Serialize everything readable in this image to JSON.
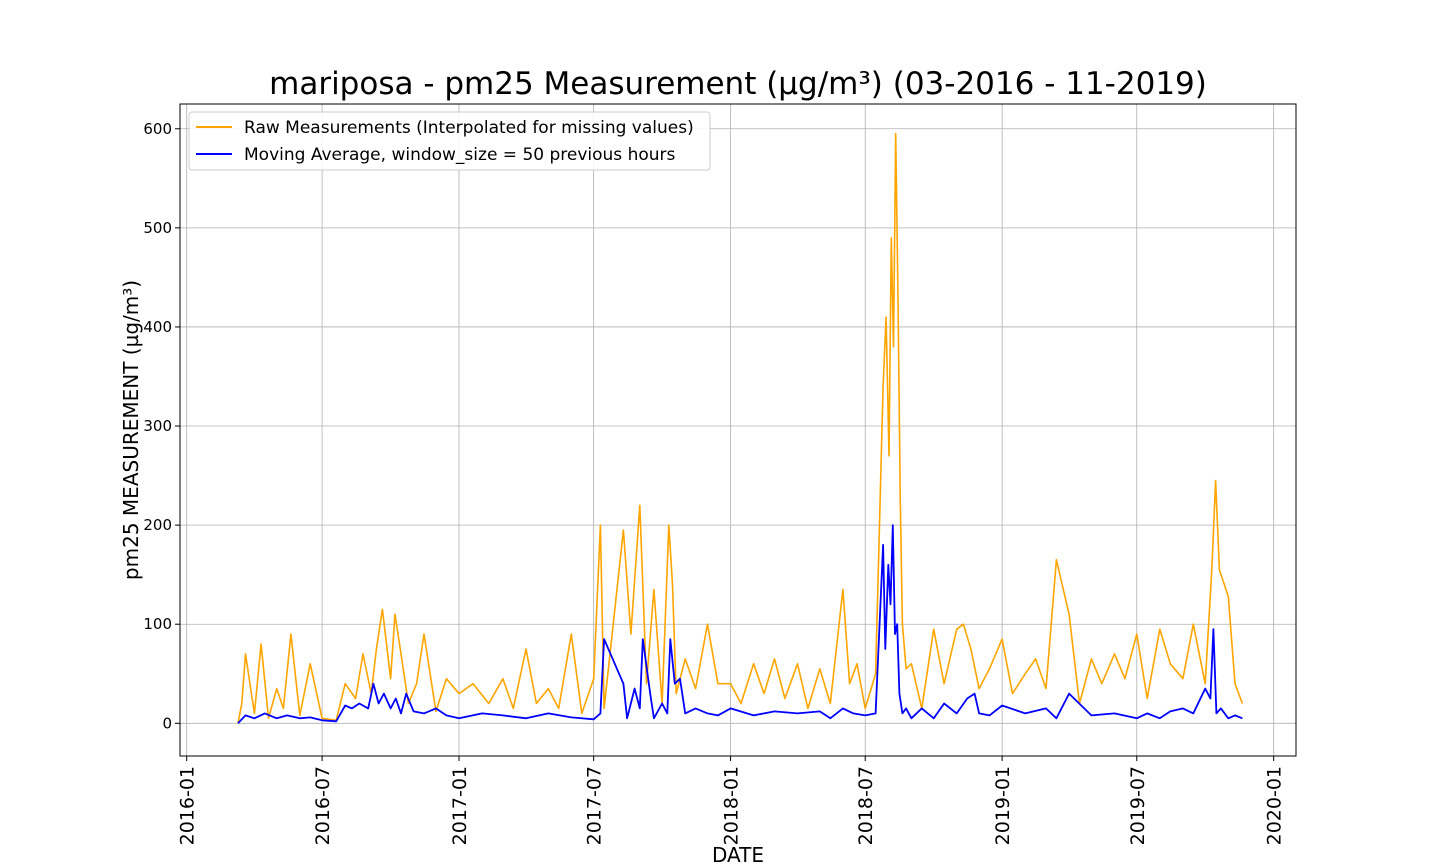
{
  "chart_data": {
    "type": "line",
    "title": "mariposa - pm25 Measurement (µg/m³) (03-2016 - 11-2019)",
    "xlabel": "DATE",
    "ylabel": "pm25 MEASUREMENT (µg/m³)",
    "x_range": [
      "2015-12-23",
      "2020-01-31"
    ],
    "ylim": [
      -33,
      625
    ],
    "x_ticks": [
      "2016-01",
      "2016-07",
      "2017-01",
      "2017-07",
      "2018-01",
      "2018-07",
      "2019-01",
      "2019-07",
      "2020-01"
    ],
    "y_ticks": [
      0,
      100,
      200,
      300,
      400,
      500,
      600
    ],
    "grid": true,
    "legend_position": "top-left",
    "colors": {
      "raw": "#ffa500",
      "average": "#0000ff"
    },
    "series": [
      {
        "name": "Raw Measurements (Interpolated for missing values)",
        "x": [
          "2016-03-10",
          "2016-03-15",
          "2016-03-20",
          "2016-04-01",
          "2016-04-10",
          "2016-04-20",
          "2016-05-01",
          "2016-05-10",
          "2016-05-20",
          "2016-06-01",
          "2016-06-15",
          "2016-07-01",
          "2016-07-20",
          "2016-08-01",
          "2016-08-15",
          "2016-08-25",
          "2016-09-05",
          "2016-09-12",
          "2016-09-20",
          "2016-10-01",
          "2016-10-07",
          "2016-10-15",
          "2016-10-25",
          "2016-11-05",
          "2016-11-15",
          "2016-12-01",
          "2016-12-15",
          "2017-01-01",
          "2017-01-20",
          "2017-02-10",
          "2017-03-01",
          "2017-03-15",
          "2017-04-01",
          "2017-04-15",
          "2017-05-01",
          "2017-05-15",
          "2017-06-01",
          "2017-06-15",
          "2017-07-01",
          "2017-07-10",
          "2017-07-15",
          "2017-08-10",
          "2017-08-20",
          "2017-09-01",
          "2017-09-10",
          "2017-09-20",
          "2017-10-01",
          "2017-10-10",
          "2017-10-15",
          "2017-10-20",
          "2017-11-01",
          "2017-11-15",
          "2017-12-01",
          "2017-12-15",
          "2018-01-01",
          "2018-01-15",
          "2018-02-01",
          "2018-02-15",
          "2018-03-01",
          "2018-03-15",
          "2018-04-01",
          "2018-04-15",
          "2018-05-01",
          "2018-05-15",
          "2018-06-01",
          "2018-06-10",
          "2018-06-20",
          "2018-07-01",
          "2018-07-15",
          "2018-07-25",
          "2018-07-29",
          "2018-08-02",
          "2018-08-05",
          "2018-08-08",
          "2018-08-11",
          "2018-08-14",
          "2018-08-17",
          "2018-08-20",
          "2018-08-25",
          "2018-09-01",
          "2018-09-15",
          "2018-10-01",
          "2018-10-15",
          "2018-11-01",
          "2018-11-10",
          "2018-11-20",
          "2018-12-01",
          "2018-12-15",
          "2019-01-01",
          "2019-01-15",
          "2019-02-01",
          "2019-02-15",
          "2019-03-01",
          "2019-03-15",
          "2019-04-01",
          "2019-04-15",
          "2019-05-01",
          "2019-05-15",
          "2019-06-01",
          "2019-06-15",
          "2019-07-01",
          "2019-07-15",
          "2019-08-01",
          "2019-08-15",
          "2019-09-01",
          "2019-09-15",
          "2019-10-01",
          "2019-10-10",
          "2019-10-15",
          "2019-10-20",
          "2019-11-01",
          "2019-11-10",
          "2019-11-20"
        ],
        "values": [
          0,
          20,
          70,
          10,
          80,
          5,
          35,
          15,
          90,
          8,
          60,
          5,
          3,
          40,
          25,
          70,
          30,
          75,
          115,
          45,
          110,
          70,
          20,
          40,
          90,
          12,
          45,
          30,
          40,
          20,
          45,
          15,
          75,
          20,
          35,
          15,
          90,
          10,
          45,
          200,
          15,
          195,
          90,
          220,
          40,
          135,
          20,
          200,
          140,
          30,
          65,
          35,
          100,
          40,
          40,
          20,
          60,
          30,
          65,
          25,
          60,
          15,
          55,
          20,
          135,
          40,
          60,
          15,
          50,
          340,
          410,
          270,
          490,
          380,
          595,
          430,
          230,
          100,
          55,
          60,
          15,
          95,
          40,
          95,
          100,
          75,
          35,
          55,
          85,
          30,
          50,
          65,
          35,
          165,
          110,
          20,
          65,
          40,
          70,
          45,
          90,
          25,
          95,
          60,
          45,
          100,
          40,
          157,
          245,
          155,
          128,
          40,
          20
        ]
      },
      {
        "name": "Moving Average, window_size = 50 previous hours",
        "x": [
          "2016-03-10",
          "2016-03-20",
          "2016-04-01",
          "2016-04-15",
          "2016-05-01",
          "2016-05-15",
          "2016-06-01",
          "2016-06-15",
          "2016-07-01",
          "2016-07-20",
          "2016-08-01",
          "2016-08-10",
          "2016-08-20",
          "2016-09-01",
          "2016-09-08",
          "2016-09-15",
          "2016-09-22",
          "2016-10-01",
          "2016-10-08",
          "2016-10-15",
          "2016-10-22",
          "2016-11-01",
          "2016-11-15",
          "2016-12-01",
          "2016-12-15",
          "2017-01-01",
          "2017-02-01",
          "2017-03-01",
          "2017-04-01",
          "2017-05-01",
          "2017-06-01",
          "2017-07-01",
          "2017-07-10",
          "2017-07-15",
          "2017-08-10",
          "2017-08-15",
          "2017-08-25",
          "2017-09-01",
          "2017-09-05",
          "2017-09-15",
          "2017-09-20",
          "2017-10-01",
          "2017-10-08",
          "2017-10-12",
          "2017-10-18",
          "2017-10-25",
          "2017-11-01",
          "2017-11-15",
          "2017-12-01",
          "2017-12-15",
          "2018-01-01",
          "2018-02-01",
          "2018-03-01",
          "2018-04-01",
          "2018-05-01",
          "2018-05-15",
          "2018-06-01",
          "2018-06-15",
          "2018-07-01",
          "2018-07-15",
          "2018-07-25",
          "2018-07-28",
          "2018-08-01",
          "2018-08-04",
          "2018-08-07",
          "2018-08-10",
          "2018-08-13",
          "2018-08-16",
          "2018-08-20",
          "2018-08-25",
          "2018-09-01",
          "2018-09-15",
          "2018-10-01",
          "2018-10-15",
          "2018-11-01",
          "2018-11-15",
          "2018-11-25",
          "2018-12-01",
          "2018-12-15",
          "2019-01-01",
          "2019-02-01",
          "2019-03-01",
          "2019-03-15",
          "2019-04-01",
          "2019-05-01",
          "2019-06-01",
          "2019-07-01",
          "2019-07-15",
          "2019-08-01",
          "2019-08-15",
          "2019-09-01",
          "2019-09-15",
          "2019-10-01",
          "2019-10-08",
          "2019-10-12",
          "2019-10-16",
          "2019-10-22",
          "2019-11-01",
          "2019-11-10",
          "2019-11-20"
        ],
        "values": [
          0,
          8,
          5,
          10,
          5,
          8,
          5,
          6,
          3,
          2,
          18,
          15,
          20,
          15,
          40,
          20,
          30,
          15,
          25,
          10,
          30,
          12,
          10,
          15,
          8,
          5,
          10,
          8,
          5,
          10,
          6,
          4,
          10,
          85,
          40,
          5,
          35,
          15,
          85,
          30,
          5,
          20,
          10,
          85,
          40,
          45,
          10,
          15,
          10,
          8,
          15,
          8,
          12,
          10,
          12,
          5,
          15,
          10,
          8,
          10,
          180,
          75,
          160,
          120,
          200,
          90,
          100,
          30,
          10,
          15,
          5,
          15,
          5,
          20,
          10,
          25,
          30,
          10,
          8,
          18,
          10,
          15,
          5,
          30,
          8,
          10,
          5,
          10,
          5,
          12,
          15,
          10,
          35,
          25,
          95,
          10,
          15,
          5,
          8,
          5
        ]
      }
    ]
  }
}
